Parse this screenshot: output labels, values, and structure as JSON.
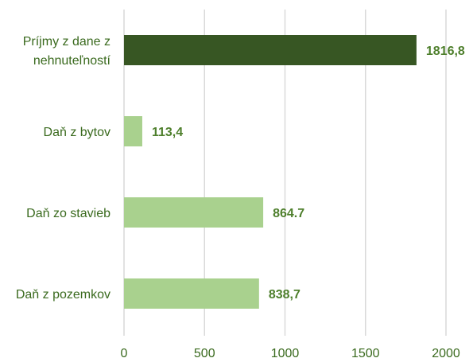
{
  "chart_data": {
    "type": "bar",
    "orientation": "horizontal",
    "title": "",
    "xlabel": "",
    "ylabel": "",
    "xlim": [
      0,
      2000
    ],
    "x_ticks": [
      "0",
      "500",
      "1000",
      "1500",
      "2000"
    ],
    "x_tick_values": [
      0,
      500,
      1000,
      1500,
      2000
    ],
    "grid": "vertical",
    "legend": "none",
    "categories": [
      {
        "label_lines": [
          "Príjmy z dane z",
          "nehnuteľností"
        ],
        "value": 1816.8,
        "value_label": "1816,8",
        "color": "#375623"
      },
      {
        "label_lines": [
          "Daň z bytov"
        ],
        "value": 113.4,
        "value_label": "113,4",
        "color": "#a9d18e"
      },
      {
        "label_lines": [
          "Daň zo stavieb"
        ],
        "value": 864.7,
        "value_label": "864.7",
        "color": "#a9d18e"
      },
      {
        "label_lines": [
          "Daň z pozemkov"
        ],
        "value": 838.7,
        "value_label": "838,7",
        "color": "#a9d18e"
      }
    ]
  },
  "colors": {
    "text": "#3a6a1e",
    "data_label": "#4e7f2c",
    "grid": "#d9d9d9"
  }
}
